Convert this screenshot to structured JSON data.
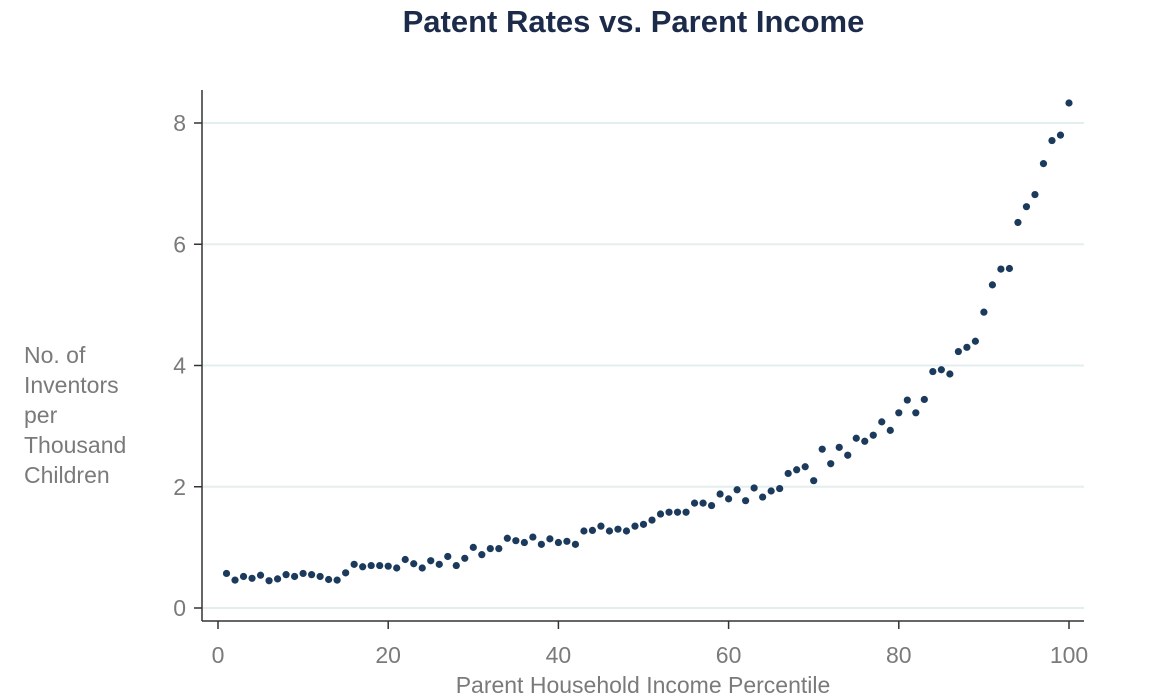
{
  "chart_data": {
    "type": "scatter",
    "title": "Patent Rates vs. Parent Income",
    "xlabel": "Parent Household Income Percentile",
    "ylabel": "No. of Inventors per Thousand Children",
    "ylabel_lines": [
      "No. of",
      "Inventors",
      "per",
      "Thousand",
      "Children"
    ],
    "xlim": [
      0,
      100
    ],
    "ylim": [
      0,
      8.5
    ],
    "x_ticks": [
      0,
      20,
      40,
      60,
      80,
      100
    ],
    "y_ticks": [
      0,
      2,
      4,
      6,
      8
    ],
    "grid": "horizontal",
    "marker_color": "#1b3a5c",
    "x": [
      1,
      2,
      3,
      4,
      5,
      6,
      7,
      8,
      9,
      10,
      11,
      12,
      13,
      14,
      15,
      16,
      17,
      18,
      19,
      20,
      21,
      22,
      23,
      24,
      25,
      26,
      27,
      28,
      29,
      30,
      31,
      32,
      33,
      34,
      35,
      36,
      37,
      38,
      39,
      40,
      41,
      42,
      43,
      44,
      45,
      46,
      47,
      48,
      49,
      50,
      51,
      52,
      53,
      54,
      55,
      56,
      57,
      58,
      59,
      60,
      61,
      62,
      63,
      64,
      65,
      66,
      67,
      68,
      69,
      70,
      71,
      72,
      73,
      74,
      75,
      76,
      77,
      78,
      79,
      80,
      81,
      82,
      83,
      84,
      85,
      86,
      87,
      88,
      89,
      90,
      91,
      92,
      93,
      94,
      95,
      96,
      97,
      98,
      99,
      100
    ],
    "y": [
      0.57,
      0.46,
      0.52,
      0.49,
      0.54,
      0.45,
      0.48,
      0.55,
      0.52,
      0.57,
      0.55,
      0.52,
      0.47,
      0.46,
      0.58,
      0.72,
      0.68,
      0.7,
      0.7,
      0.69,
      0.66,
      0.8,
      0.73,
      0.66,
      0.78,
      0.72,
      0.85,
      0.7,
      0.82,
      1.0,
      0.88,
      0.98,
      0.98,
      1.15,
      1.11,
      1.08,
      1.17,
      1.05,
      1.14,
      1.08,
      1.1,
      1.05,
      1.27,
      1.28,
      1.35,
      1.27,
      1.3,
      1.27,
      1.35,
      1.38,
      1.45,
      1.55,
      1.58,
      1.58,
      1.58,
      1.73,
      1.73,
      1.69,
      1.88,
      1.8,
      1.95,
      1.77,
      1.98,
      1.83,
      1.93,
      1.97,
      2.22,
      2.28,
      2.33,
      2.1,
      2.62,
      2.38,
      2.65,
      2.52,
      2.8,
      2.75,
      2.85,
      3.07,
      2.93,
      3.22,
      3.43,
      3.22,
      3.44,
      3.9,
      3.93,
      3.86,
      4.23,
      4.3,
      4.4,
      4.88,
      5.33,
      5.59,
      5.6,
      6.36,
      6.62,
      6.82,
      7.33,
      7.71,
      7.8,
      8.33
    ]
  }
}
